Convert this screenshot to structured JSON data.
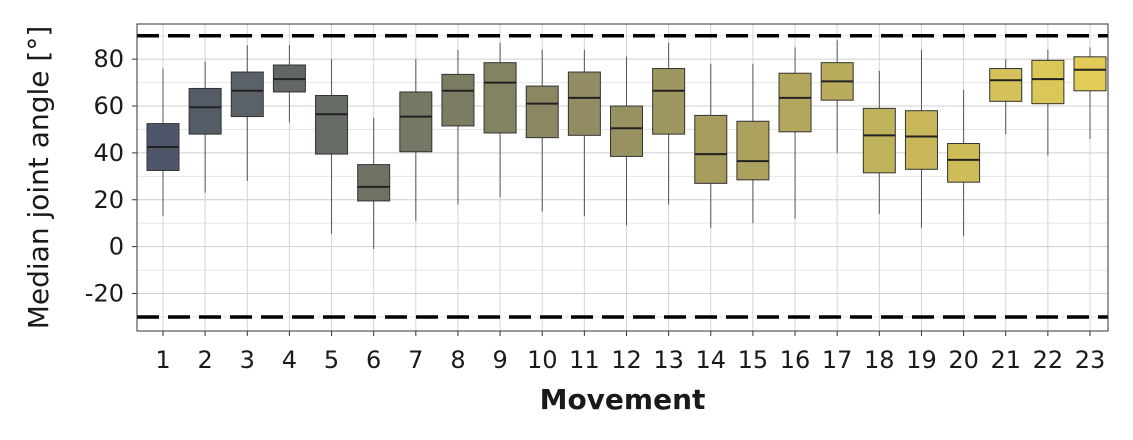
{
  "chart_data": {
    "type": "box",
    "xlabel": "Movement",
    "ylabel": "Median joint angle [°]",
    "ylim": [
      -36,
      95
    ],
    "yticks": [
      -20,
      0,
      20,
      40,
      60,
      80
    ],
    "grid": true,
    "reference_lines": [
      90,
      -30
    ],
    "color_start": "#4d5769",
    "color_end": "#e2cc57",
    "boxes": [
      {
        "label": "1",
        "min": 13,
        "q1": 32.5,
        "median": 42.5,
        "q3": 52.5,
        "max": 76
      },
      {
        "label": "2",
        "min": 23,
        "q1": 48,
        "median": 59.5,
        "q3": 67.5,
        "max": 79
      },
      {
        "label": "3",
        "min": 28,
        "q1": 55.5,
        "median": 66.5,
        "q3": 74.5,
        "max": 86
      },
      {
        "label": "4",
        "min": 53,
        "q1": 66,
        "median": 71.5,
        "q3": 77.5,
        "max": 86
      },
      {
        "label": "5",
        "min": 5.5,
        "q1": 39.5,
        "median": 56.5,
        "q3": 64.5,
        "max": 80
      },
      {
        "label": "6",
        "min": -1,
        "q1": 19.5,
        "median": 25.5,
        "q3": 35,
        "max": 55
      },
      {
        "label": "7",
        "min": 11,
        "q1": 40.5,
        "median": 55.5,
        "q3": 66,
        "max": 80
      },
      {
        "label": "8",
        "min": 18,
        "q1": 51.5,
        "median": 66.5,
        "q3": 73.5,
        "max": 84
      },
      {
        "label": "9",
        "min": 21,
        "q1": 48.5,
        "median": 70,
        "q3": 78.5,
        "max": 87
      },
      {
        "label": "10",
        "min": 15,
        "q1": 46.5,
        "median": 61,
        "q3": 68.5,
        "max": 84
      },
      {
        "label": "11",
        "min": 13,
        "q1": 47.5,
        "median": 63.5,
        "q3": 74.5,
        "max": 84
      },
      {
        "label": "12",
        "min": 9,
        "q1": 38.5,
        "median": 50.5,
        "q3": 60,
        "max": 81
      },
      {
        "label": "13",
        "min": 18,
        "q1": 48,
        "median": 66.5,
        "q3": 76,
        "max": 87
      },
      {
        "label": "14",
        "min": 8,
        "q1": 27,
        "median": 39.5,
        "q3": 56,
        "max": 78
      },
      {
        "label": "15",
        "min": 10,
        "q1": 28.5,
        "median": 36.5,
        "q3": 53.5,
        "max": 78
      },
      {
        "label": "16",
        "min": 12,
        "q1": 49,
        "median": 63.5,
        "q3": 74,
        "max": 85
      },
      {
        "label": "17",
        "min": 40,
        "q1": 62.5,
        "median": 70.5,
        "q3": 78.5,
        "max": 88
      },
      {
        "label": "18",
        "min": 14,
        "q1": 31.5,
        "median": 47.5,
        "q3": 59,
        "max": 75
      },
      {
        "label": "19",
        "min": 8,
        "q1": 33,
        "median": 47,
        "q3": 58,
        "max": 84
      },
      {
        "label": "20",
        "min": 4.5,
        "q1": 27.5,
        "median": 37,
        "q3": 44,
        "max": 67
      },
      {
        "label": "21",
        "min": 48,
        "q1": 62,
        "median": 71,
        "q3": 76,
        "max": 80
      },
      {
        "label": "22",
        "min": 39,
        "q1": 61,
        "median": 71.5,
        "q3": 79.5,
        "max": 84
      },
      {
        "label": "23",
        "min": 46,
        "q1": 66.5,
        "median": 75.5,
        "q3": 81,
        "max": 85
      }
    ]
  }
}
